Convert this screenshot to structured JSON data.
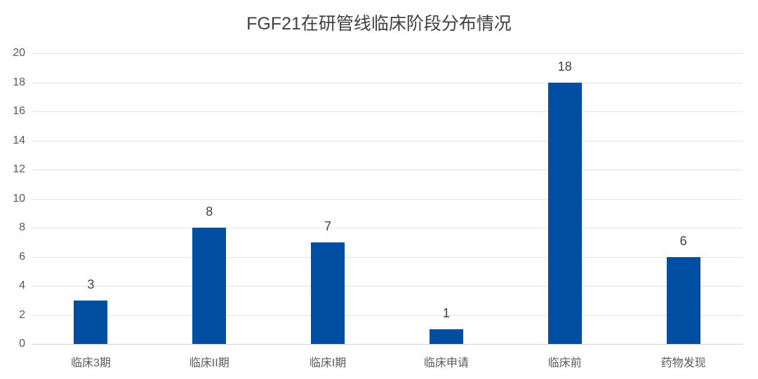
{
  "chart": {
    "title": "FGF21在研管线临床阶段分布情况",
    "bar_color": "#004EA2",
    "grid_color": "#E3E3E3"
  },
  "chart_data": {
    "type": "bar",
    "title": "FGF21在研管线临床阶段分布情况",
    "categories": [
      "临床3期",
      "临床II期",
      "临床I期",
      "临床申请",
      "临床前",
      "药物发现"
    ],
    "values": [
      3,
      8,
      7,
      1,
      18,
      6
    ],
    "xlabel": "",
    "ylabel": "",
    "ylim": [
      0,
      20
    ],
    "yticks": [
      0,
      2,
      4,
      6,
      8,
      10,
      12,
      14,
      16,
      18,
      20
    ],
    "grid": true,
    "legend": null,
    "data_labels": true
  }
}
